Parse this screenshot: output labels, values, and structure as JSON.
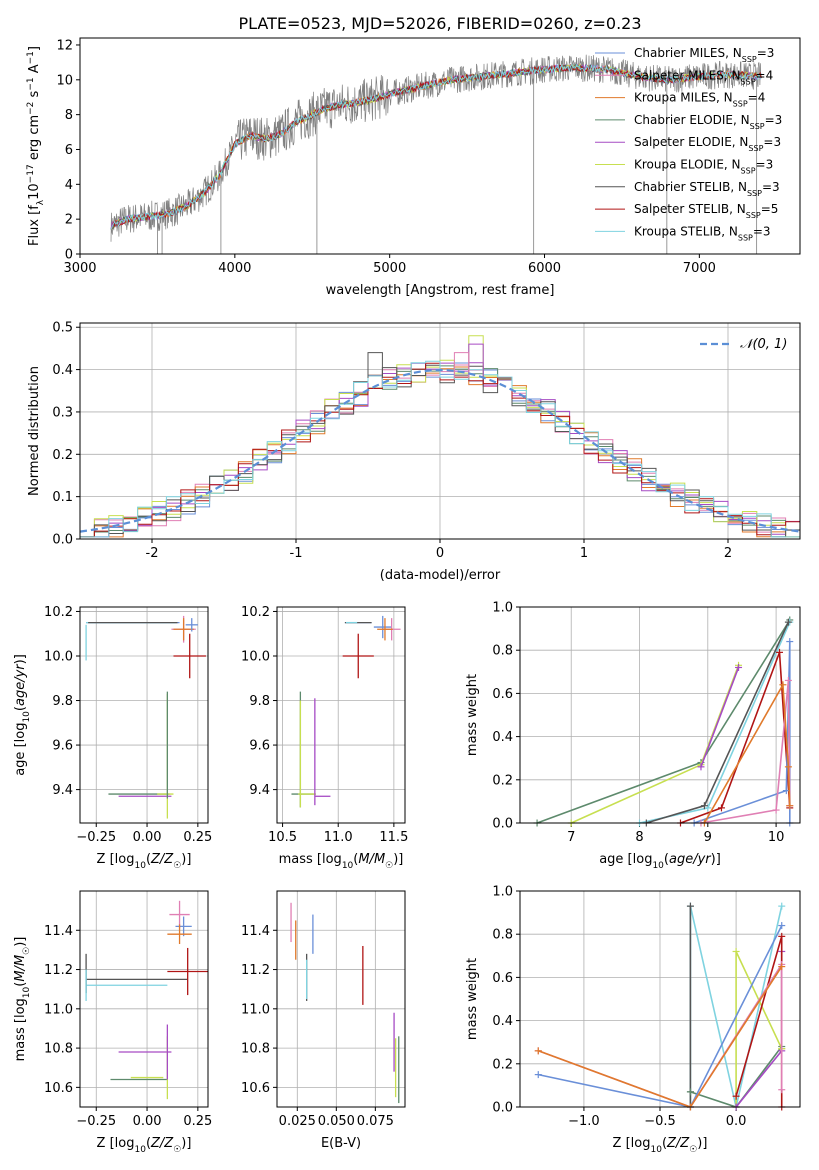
{
  "figure_title": "PLATE=0523, MJD=52026, FIBERID=0260, z=0.23",
  "chart_data": [
    {
      "id": "spectrum",
      "type": "line",
      "xlabel": "wavelength [Angstrom, rest frame]",
      "ylabel": "Flux [f_λ10⁻¹⁷ erg cm⁻² s⁻¹ A⁻¹]",
      "xlim": [
        3000,
        7650
      ],
      "ylim": [
        0,
        12.4
      ],
      "xticks": [
        3000,
        4000,
        5000,
        6000,
        7000
      ],
      "yticks": [
        0,
        2,
        4,
        6,
        8,
        10,
        12
      ],
      "grid": false,
      "legend_position": "upper-right",
      "data_range": [
        3200,
        7400
      ],
      "data_anchor_x": [
        3200,
        3300,
        3400,
        3500,
        3600,
        3700,
        3800,
        3900,
        4000,
        4100,
        4200,
        4300,
        4400,
        4500,
        4600,
        4700,
        4800,
        4900,
        5000,
        5200,
        5400,
        5600,
        5800,
        6000,
        6200,
        6400,
        6600,
        6800,
        7000,
        7200,
        7400
      ],
      "data_anchor_y": [
        1.6,
        2.0,
        2.1,
        2.2,
        2.4,
        2.8,
        3.5,
        4.5,
        6.3,
        6.8,
        6.6,
        6.9,
        7.6,
        8.0,
        8.4,
        8.6,
        8.7,
        8.9,
        9.2,
        9.6,
        10.0,
        10.2,
        10.4,
        10.6,
        10.7,
        10.6,
        10.2,
        10.0,
        10.2,
        10.3,
        10.2
      ],
      "series": [
        {
          "name": "Chabrier MILES, N_SSP=3",
          "label_main": "Chabrier MILES, N",
          "label_sub": "SSP",
          "label_tail": "=3",
          "color": "#6a8fd8"
        },
        {
          "name": "Salpeter MILES, N_SSP=4",
          "label_main": "Salpeter MILES, N",
          "label_sub": "SSP",
          "label_tail": "=4",
          "color": "#e07fb4"
        },
        {
          "name": "Kroupa MILES, N_SSP=4",
          "label_main": "Kroupa MILES, N",
          "label_sub": "SSP",
          "label_tail": "=4",
          "color": "#e07a2c"
        },
        {
          "name": "Chabrier ELODIE, N_SSP=3",
          "label_main": "Chabrier ELODIE, N",
          "label_sub": "SSP",
          "label_tail": "=3",
          "color": "#5d8a6c"
        },
        {
          "name": "Salpeter ELODIE, N_SSP=3",
          "label_main": "Salpeter ELODIE, N",
          "label_sub": "SSP",
          "label_tail": "=3",
          "color": "#a64bc4"
        },
        {
          "name": "Kroupa ELODIE, N_SSP=3",
          "label_main": "Kroupa ELODIE, N",
          "label_sub": "SSP",
          "label_tail": "=3",
          "color": "#c7df50"
        },
        {
          "name": "Chabrier STELIB, N_SSP=3",
          "label_main": "Chabrier STELIB, N",
          "label_sub": "SSP",
          "label_tail": "=3",
          "color": "#555555"
        },
        {
          "name": "Salpeter STELIB, N_SSP=5",
          "label_main": "Salpeter STELIB, N",
          "label_sub": "SSP",
          "label_tail": "=5",
          "color": "#b01515"
        },
        {
          "name": "Kroupa STELIB, N_SSP=3",
          "label_main": "Kroupa STELIB, N",
          "label_sub": "SSP",
          "label_tail": "=3",
          "color": "#7fd3e0"
        }
      ],
      "data_color": "#808080"
    },
    {
      "id": "residuals",
      "type": "histogram",
      "xlabel": "(data-model)/error",
      "ylabel": "Normed distribution",
      "xlim": [
        -2.5,
        2.5
      ],
      "ylim": [
        0,
        0.51
      ],
      "xticks": [
        -2,
        -1,
        0,
        1,
        2
      ],
      "yticks": [
        0.0,
        0.1,
        0.2,
        0.3,
        0.4,
        0.5
      ],
      "grid": true,
      "legend_position": "upper-right",
      "reference_curve": {
        "name": "𝒩(0, 1)",
        "color": "#5b8fd6",
        "style": "dashed"
      },
      "bin_width": 0.1,
      "extra_bins": [
        {
          "x": 0.25,
          "v": 0.48,
          "color": "#c7df50"
        },
        {
          "x": 0.25,
          "v": 0.46,
          "color": "#a64bc4"
        },
        {
          "x": 0.15,
          "v": 0.44,
          "color": "#e07fb4"
        },
        {
          "x": -0.45,
          "v": 0.44,
          "color": "#555555"
        }
      ]
    },
    {
      "id": "age_vs_Z",
      "type": "errorbar",
      "xlabel": "Z [log₁₀(Z/Z☉)]",
      "ylabel": "age  [log₁₀(age/yr)]",
      "xlim": [
        -0.33,
        0.3
      ],
      "ylim": [
        9.25,
        10.22
      ],
      "xticks": [
        -0.25,
        0.0,
        0.25
      ],
      "xtick_labels": [
        "−0.25",
        "0.00",
        "0.25"
      ],
      "yticks": [
        9.4,
        9.6,
        9.8,
        10.0,
        10.2
      ],
      "grid": true,
      "points": [
        {
          "x": -0.07,
          "y": 10.15,
          "xerr": 0.23,
          "yerr": 0.0,
          "color": "#6a8fd8"
        },
        {
          "x": -0.08,
          "y": 10.15,
          "xerr": 0.22,
          "yerr": 0.0,
          "color": "#7fd3e0"
        },
        {
          "x": -0.07,
          "y": 10.15,
          "xerr": 0.22,
          "yerr": 0.0,
          "color": "#555555"
        },
        {
          "x": 0.18,
          "y": 10.12,
          "xerr": 0.06,
          "yerr": 0.06,
          "color": "#e07fb4"
        },
        {
          "x": 0.18,
          "y": 10.12,
          "xerr": 0.05,
          "yerr": 0.05,
          "color": "#e07a2c"
        },
        {
          "x": 0.22,
          "y": 10.14,
          "xerr": 0.03,
          "yerr": 0.03,
          "color": "#6a8fd8"
        },
        {
          "x": -0.3,
          "y": 10.06,
          "xerr": 0.0,
          "yerr": 0.08,
          "color": "#7fd3e0"
        },
        {
          "x": 0.21,
          "y": 10.0,
          "xerr": 0.08,
          "yerr": 0.1,
          "color": "#b01515"
        },
        {
          "x": -0.04,
          "y": 9.38,
          "xerr": 0.15,
          "yerr": 0.0,
          "color": "#5d8a6c"
        },
        {
          "x": -0.01,
          "y": 9.37,
          "xerr": 0.13,
          "yerr": 0.0,
          "color": "#a64bc4"
        },
        {
          "x": 0.09,
          "y": 9.38,
          "xerr": 0.04,
          "yerr": 0.0,
          "color": "#c7df50"
        },
        {
          "x": 0.1,
          "y": 9.55,
          "xerr": 0.0,
          "yerr": 0.28,
          "color": "#c7df50"
        },
        {
          "x": 0.1,
          "y": 9.6,
          "xerr": 0.0,
          "yerr": 0.24,
          "color": "#5d8a6c"
        }
      ]
    },
    {
      "id": "age_vs_mass",
      "type": "errorbar",
      "xlabel": "mass [log₁₀(M/M☉)]",
      "ylabel": "",
      "xlim": [
        10.45,
        11.6
      ],
      "ylim": [
        9.25,
        10.22
      ],
      "xticks": [
        10.5,
        11.0,
        11.5
      ],
      "xtick_labels": [
        "10.5",
        "11.0",
        "11.5"
      ],
      "yticks": [
        9.4,
        9.6,
        9.8,
        10.0,
        10.2
      ],
      "grid": true,
      "points": [
        {
          "x": 11.18,
          "y": 10.15,
          "xerr": 0.12,
          "yerr": 0.0,
          "color": "#6a8fd8"
        },
        {
          "x": 11.18,
          "y": 10.15,
          "xerr": 0.12,
          "yerr": 0.0,
          "color": "#555555"
        },
        {
          "x": 11.12,
          "y": 10.15,
          "xerr": 0.05,
          "yerr": 0.0,
          "color": "#7fd3e0"
        },
        {
          "x": 11.4,
          "y": 10.13,
          "xerr": 0.08,
          "yerr": 0.05,
          "color": "#6a8fd8"
        },
        {
          "x": 11.48,
          "y": 10.12,
          "xerr": 0.08,
          "yerr": 0.05,
          "color": "#e07fb4"
        },
        {
          "x": 11.42,
          "y": 10.12,
          "xerr": 0.07,
          "yerr": 0.05,
          "color": "#e07a2c"
        },
        {
          "x": 11.18,
          "y": 10.0,
          "xerr": 0.14,
          "yerr": 0.1,
          "color": "#b01515"
        },
        {
          "x": 10.68,
          "y": 9.38,
          "xerr": 0.1,
          "yerr": 0.0,
          "color": "#5d8a6c"
        },
        {
          "x": 10.72,
          "y": 9.38,
          "xerr": 0.08,
          "yerr": 0.0,
          "color": "#c7df50"
        },
        {
          "x": 10.86,
          "y": 9.37,
          "xerr": 0.07,
          "yerr": 0.0,
          "color": "#a64bc4"
        },
        {
          "x": 10.66,
          "y": 9.58,
          "xerr": 0.0,
          "yerr": 0.26,
          "color": "#5d8a6c"
        },
        {
          "x": 10.66,
          "y": 9.56,
          "xerr": 0.0,
          "yerr": 0.24,
          "color": "#c7df50"
        },
        {
          "x": 10.79,
          "y": 9.57,
          "xerr": 0.0,
          "yerr": 0.24,
          "color": "#a64bc4"
        }
      ]
    },
    {
      "id": "weight_vs_age",
      "type": "line",
      "xlabel": "age  [log₁₀(age/yr)]",
      "ylabel": "mass weight",
      "xlim": [
        6.25,
        10.35
      ],
      "ylim": [
        0,
        1.0
      ],
      "xticks": [
        7,
        8,
        9,
        10
      ],
      "yticks": [
        0.0,
        0.2,
        0.4,
        0.6,
        0.8,
        1.0
      ],
      "grid": true,
      "series": [
        {
          "color": "#5d8a6c",
          "x": [
            6.5,
            8.9,
            10.2
          ],
          "y": [
            0.0,
            0.28,
            0.94
          ]
        },
        {
          "color": "#7fd3e0",
          "x": [
            8.0,
            9.0,
            10.2
          ],
          "y": [
            0.0,
            0.07,
            0.93
          ]
        },
        {
          "color": "#555555",
          "x": [
            8.1,
            8.95,
            10.18
          ],
          "y": [
            0.0,
            0.08,
            0.93
          ]
        },
        {
          "color": "#c7df50",
          "x": [
            7.0,
            8.9,
            9.45
          ],
          "y": [
            0.0,
            0.27,
            0.73
          ]
        },
        {
          "color": "#a64bc4",
          "x": [
            8.9,
            9.45
          ],
          "y": [
            0.26,
            0.72
          ]
        },
        {
          "color": "#b01515",
          "x": [
            8.6,
            9.2,
            10.05,
            10.2
          ],
          "y": [
            0.0,
            0.07,
            0.79,
            0.07
          ]
        },
        {
          "color": "#6a8fd8",
          "x": [
            8.8,
            10.15,
            10.2,
            10.2
          ],
          "y": [
            0.0,
            0.15,
            0.84,
            0.0
          ]
        },
        {
          "color": "#e07fb4",
          "x": [
            8.9,
            10.0,
            10.18,
            10.2
          ],
          "y": [
            0.0,
            0.06,
            0.66,
            0.08
          ]
        },
        {
          "color": "#e07a2c",
          "x": [
            8.95,
            10.1,
            10.18,
            10.2
          ],
          "y": [
            0.0,
            0.64,
            0.26,
            0.08
          ]
        }
      ]
    },
    {
      "id": "mass_vs_Z",
      "type": "errorbar",
      "xlabel": "Z [log₁₀(Z/Z☉)]",
      "ylabel": "mass [log₁₀(M/M☉)]",
      "xlim": [
        -0.33,
        0.3
      ],
      "ylim": [
        10.5,
        11.6
      ],
      "xticks": [
        -0.25,
        0.0,
        0.25
      ],
      "xtick_labels": [
        "−0.25",
        "0.00",
        "0.25"
      ],
      "yticks": [
        10.6,
        10.8,
        11.0,
        11.2,
        11.4
      ],
      "grid": true,
      "points": [
        {
          "x": 0.16,
          "y": 11.48,
          "xerr": 0.05,
          "yerr": 0.07,
          "color": "#e07fb4"
        },
        {
          "x": 0.18,
          "y": 11.42,
          "xerr": 0.04,
          "yerr": 0.05,
          "color": "#6a8fd8"
        },
        {
          "x": 0.16,
          "y": 11.38,
          "xerr": 0.06,
          "yerr": 0.05,
          "color": "#e07a2c"
        },
        {
          "x": -0.05,
          "y": 11.15,
          "xerr": 0.25,
          "yerr": 0.0,
          "color": "#555555"
        },
        {
          "x": -0.1,
          "y": 11.12,
          "xerr": 0.2,
          "yerr": 0.0,
          "color": "#7fd3e0"
        },
        {
          "x": 0.2,
          "y": 11.19,
          "xerr": 0.1,
          "yerr": 0.12,
          "color": "#b01515"
        },
        {
          "x": -0.3,
          "y": 11.18,
          "xerr": 0.0,
          "yerr": 0.1,
          "color": "#555555"
        },
        {
          "x": -0.3,
          "y": 11.12,
          "xerr": 0.0,
          "yerr": 0.08,
          "color": "#7fd3e0"
        },
        {
          "x": -0.01,
          "y": 10.78,
          "xerr": 0.13,
          "yerr": 0.0,
          "color": "#a64bc4"
        },
        {
          "x": 0.0,
          "y": 10.65,
          "xerr": 0.08,
          "yerr": 0.0,
          "color": "#c7df50"
        },
        {
          "x": -0.04,
          "y": 10.64,
          "xerr": 0.14,
          "yerr": 0.0,
          "color": "#5d8a6c"
        },
        {
          "x": 0.1,
          "y": 10.7,
          "xerr": 0.0,
          "yerr": 0.16,
          "color": "#c7df50"
        },
        {
          "x": 0.1,
          "y": 10.78,
          "xerr": 0.0,
          "yerr": 0.14,
          "color": "#a64bc4"
        }
      ]
    },
    {
      "id": "mass_vs_EBV",
      "type": "errorbar",
      "xlabel": "E(B-V)",
      "ylabel": "",
      "xlim": [
        0.012,
        0.094
      ],
      "ylim": [
        10.5,
        11.6
      ],
      "xticks": [
        0.025,
        0.05,
        0.075
      ],
      "xtick_labels": [
        "0.025",
        "0.050",
        "0.075"
      ],
      "yticks": [
        10.6,
        10.8,
        11.0,
        11.2,
        11.4
      ],
      "grid": true,
      "points": [
        {
          "x": 0.021,
          "y": 11.44,
          "xerr": 0.0,
          "yerr": 0.1,
          "color": "#e07fb4"
        },
        {
          "x": 0.024,
          "y": 11.35,
          "xerr": 0.0,
          "yerr": 0.1,
          "color": "#e07a2c"
        },
        {
          "x": 0.035,
          "y": 11.38,
          "xerr": 0.0,
          "yerr": 0.1,
          "color": "#6a8fd8"
        },
        {
          "x": 0.031,
          "y": 11.16,
          "xerr": 0.0,
          "yerr": 0.12,
          "color": "#555555"
        },
        {
          "x": 0.031,
          "y": 11.15,
          "xerr": 0.0,
          "yerr": 0.1,
          "color": "#7fd3e0"
        },
        {
          "x": 0.067,
          "y": 11.17,
          "xerr": 0.0,
          "yerr": 0.15,
          "color": "#b01515"
        },
        {
          "x": 0.087,
          "y": 10.83,
          "xerr": 0.0,
          "yerr": 0.15,
          "color": "#a64bc4"
        },
        {
          "x": 0.088,
          "y": 10.7,
          "xerr": 0.0,
          "yerr": 0.15,
          "color": "#c7df50"
        },
        {
          "x": 0.09,
          "y": 10.69,
          "xerr": 0.0,
          "yerr": 0.17,
          "color": "#5d8a6c"
        }
      ]
    },
    {
      "id": "weight_vs_Z",
      "type": "line",
      "xlabel": "Z [log₁₀(Z/Z☉)]",
      "ylabel": "mass weight",
      "xlim": [
        -1.42,
        0.42
      ],
      "ylim": [
        0,
        1.0
      ],
      "xticks": [
        -1.0,
        -0.5,
        0.0
      ],
      "xtick_labels": [
        "−1.0",
        "−0.5",
        "0.0"
      ],
      "yticks": [
        0.0,
        0.2,
        0.4,
        0.6,
        0.8,
        1.0
      ],
      "grid": true,
      "series": [
        {
          "color": "#7fd3e0",
          "x": [
            -0.3,
            -0.3,
            0.0,
            0.3
          ],
          "y": [
            0.0,
            0.93,
            0.0,
            0.93
          ]
        },
        {
          "color": "#555555",
          "x": [
            -0.3,
            -0.3,
            -0.3
          ],
          "y": [
            0.0,
            0.93,
            0.07
          ]
        },
        {
          "color": "#5d8a6c",
          "x": [
            -0.3,
            0.0,
            0.3
          ],
          "y": [
            0.07,
            0.0,
            0.28
          ]
        },
        {
          "color": "#c7df50",
          "x": [
            0.0,
            0.0,
            0.3,
            0.3
          ],
          "y": [
            0.0,
            0.72,
            0.27,
            0.27
          ]
        },
        {
          "color": "#a64bc4",
          "x": [
            0.0,
            0.3,
            0.3
          ],
          "y": [
            0.0,
            0.26,
            0.72
          ]
        },
        {
          "color": "#b01515",
          "x": [
            0.0,
            0.3,
            0.3
          ],
          "y": [
            0.05,
            0.79,
            0.0
          ]
        },
        {
          "color": "#6a8fd8",
          "x": [
            -1.3,
            -0.3,
            0.3
          ],
          "y": [
            0.15,
            0.0,
            0.84
          ]
        },
        {
          "color": "#e07fb4",
          "x": [
            -1.3,
            -0.3,
            0.3,
            0.3
          ],
          "y": [
            0.26,
            0.0,
            0.66,
            0.08
          ]
        },
        {
          "color": "#e07a2c",
          "x": [
            -1.3,
            -0.3,
            0.3
          ],
          "y": [
            0.26,
            0.0,
            0.65
          ]
        }
      ]
    }
  ]
}
